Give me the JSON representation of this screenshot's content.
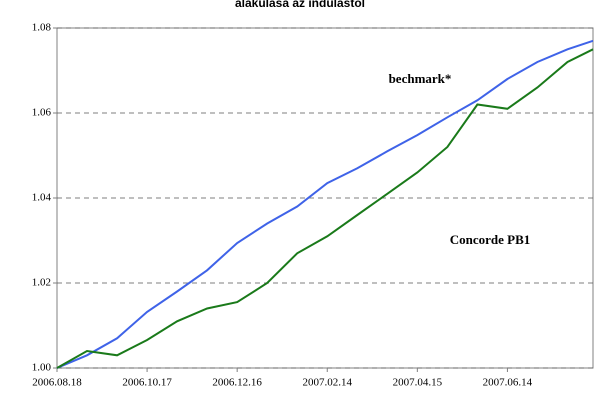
{
  "chart_data": {
    "type": "line",
    "title": "alakulása az indulástól",
    "x": [
      "2006.08.18",
      "2006.09.07",
      "2006.09.27",
      "2006.10.17",
      "2006.11.06",
      "2006.11.26",
      "2006.12.16",
      "2007.01.05",
      "2007.01.25",
      "2007.02.14",
      "2007.03.06",
      "2007.03.26",
      "2007.04.15",
      "2007.05.05",
      "2007.05.25",
      "2007.06.14",
      "2007.07.04",
      "2007.07.24",
      "2007.08.10"
    ],
    "series": [
      {
        "name": "bechmark*",
        "color": "#3f63e8",
        "values": [
          1.0,
          1.003,
          1.007,
          1.0132,
          1.018,
          1.023,
          1.0294,
          1.034,
          1.038,
          1.0435,
          1.047,
          1.051,
          1.0548,
          1.059,
          1.063,
          1.068,
          1.072,
          1.075,
          1.077
        ]
      },
      {
        "name": "Concorde PB1",
        "color": "#1a7a1a",
        "values": [
          1.0,
          1.004,
          1.003,
          1.0066,
          1.011,
          1.014,
          1.0155,
          1.02,
          1.027,
          1.031,
          1.036,
          1.041,
          1.046,
          1.052,
          1.062,
          1.061,
          1.066,
          1.072,
          1.075
        ]
      }
    ],
    "xlim": [
      "2006.08.18",
      "2007.08.10"
    ],
    "xticks": [
      "2006.08.18",
      "2006.10.17",
      "2006.12.16",
      "2007.02.14",
      "2007.04.15",
      "2007.06.14"
    ],
    "ylim": [
      1.0,
      1.08
    ],
    "yticks": [
      {
        "value": 1.0,
        "label": "1.00"
      },
      1.02,
      1.04,
      1.06,
      1.08
    ],
    "grid": true
  }
}
